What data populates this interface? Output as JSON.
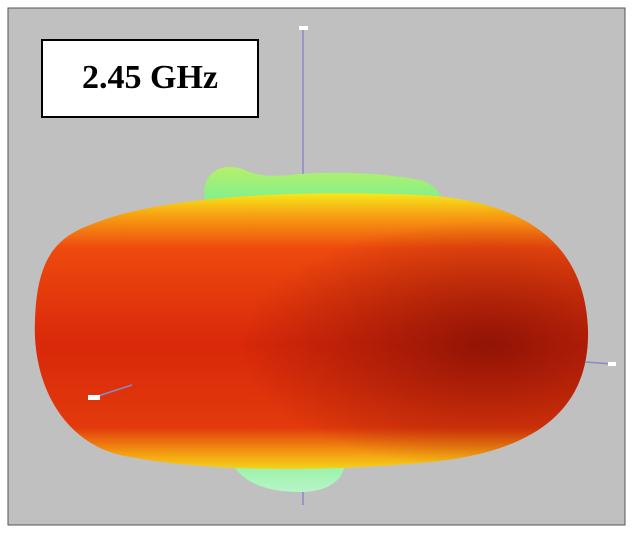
{
  "label": {
    "text": "2.45 GHz"
  }
}
